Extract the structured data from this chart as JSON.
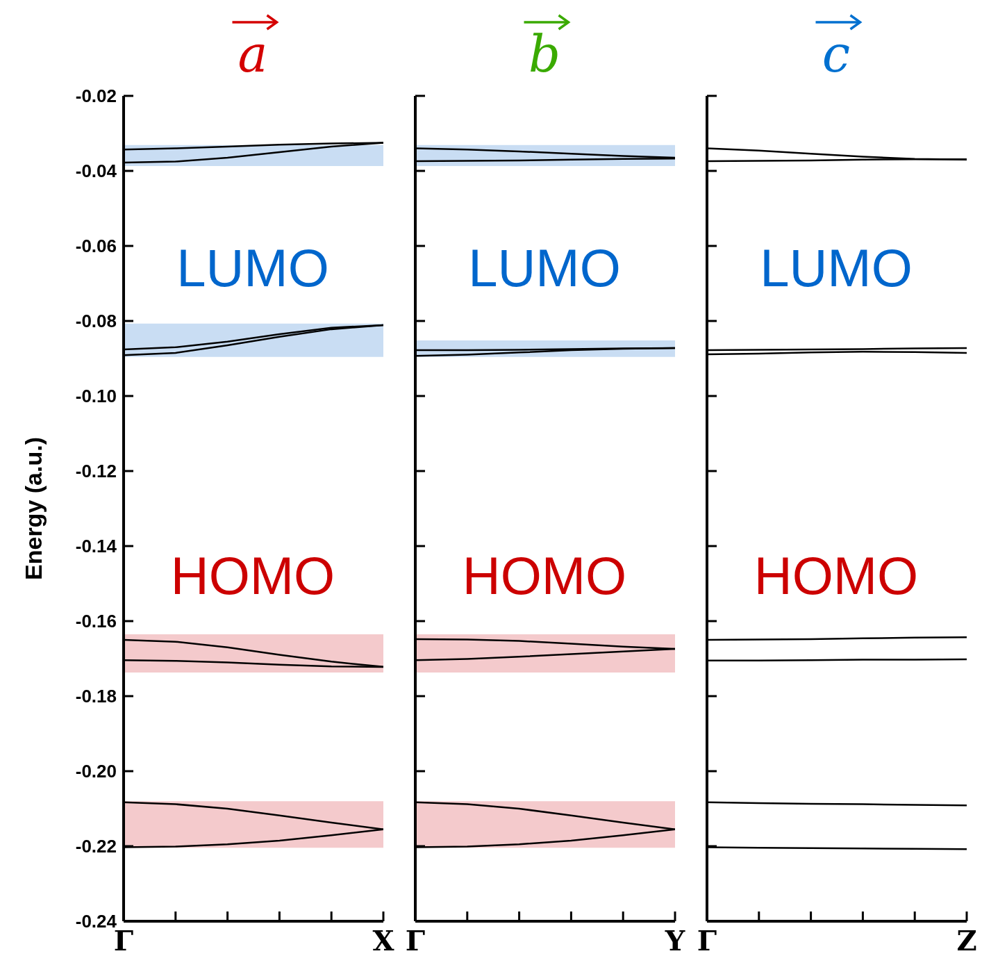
{
  "chart_data": [
    {
      "type": "line",
      "title": "a",
      "ylabel": "Energy (a.u.)",
      "annotations": [
        "LUMO",
        "HOMO"
      ],
      "categories": [
        "Γ",
        null,
        null,
        null,
        null,
        "X"
      ],
      "ylim": [
        -0.24,
        -0.02
      ],
      "yticks": [
        -0.24,
        -0.22,
        {
          "value": -0.2,
          "label": "-0.20"
        },
        -0.18,
        -0.16,
        -0.14,
        -0.12,
        {
          "value": -0.1,
          "label": "-0.10"
        },
        -0.08,
        -0.06,
        -0.04,
        -0.02
      ],
      "bands": [
        {
          "axis": "y",
          "from": -0.0387,
          "to": -0.0331,
          "color": "#c9ddf3"
        },
        {
          "axis": "y",
          "from": -0.0896,
          "to": -0.0807,
          "color": "#c9ddf3"
        },
        {
          "axis": "y",
          "from": -0.1737,
          "to": -0.1635,
          "color": "#f4cacc"
        },
        {
          "axis": "y",
          "from": -0.2204,
          "to": -0.208,
          "color": "#f4cacc"
        }
      ],
      "series": [
        {
          "color": "#000000",
          "values": [
            -0.0343,
            -0.034,
            -0.0335,
            -0.033,
            -0.0327,
            -0.0325
          ]
        },
        {
          "color": "#000000",
          "values": [
            -0.0378,
            -0.0375,
            -0.0365,
            -0.035,
            -0.0335,
            -0.0325
          ]
        },
        {
          "color": "#000000",
          "values": [
            -0.0876,
            -0.087,
            -0.0855,
            -0.0835,
            -0.0818,
            -0.0811
          ]
        },
        {
          "color": "#000000",
          "values": [
            -0.0891,
            -0.0885,
            -0.0865,
            -0.0842,
            -0.0822,
            -0.0811
          ]
        },
        {
          "color": "#000000",
          "values": [
            -0.165,
            -0.1655,
            -0.167,
            -0.169,
            -0.1708,
            -0.1722
          ]
        },
        {
          "color": "#000000",
          "values": [
            -0.1704,
            -0.1706,
            -0.171,
            -0.1716,
            -0.1721,
            -0.1722
          ]
        },
        {
          "color": "#000000",
          "values": [
            -0.2083,
            -0.2088,
            -0.21,
            -0.2118,
            -0.2137,
            -0.2155
          ]
        },
        {
          "color": "#000000",
          "values": [
            -0.2203,
            -0.2201,
            -0.2195,
            -0.2185,
            -0.2171,
            -0.2155
          ]
        }
      ]
    },
    {
      "type": "line",
      "title": "b",
      "annotations": [
        "LUMO",
        "HOMO"
      ],
      "tick_labels": "x",
      "categories": [
        "Γ",
        null,
        null,
        null,
        null,
        "Y"
      ],
      "ylim": [
        -0.24,
        -0.02
      ],
      "yticks": [
        -0.24,
        -0.22,
        -0.2,
        -0.18,
        -0.16,
        -0.14,
        -0.12,
        -0.1,
        -0.08,
        -0.06,
        -0.04,
        -0.02
      ],
      "bands": [
        {
          "axis": "y",
          "from": -0.0387,
          "to": -0.0331,
          "color": "#c9ddf3"
        },
        {
          "axis": "y",
          "from": -0.0896,
          "to": -0.0852,
          "color": "#c9ddf3"
        },
        {
          "axis": "y",
          "from": -0.1737,
          "to": -0.1635,
          "color": "#f4cacc"
        },
        {
          "axis": "y",
          "from": -0.2204,
          "to": -0.208,
          "color": "#f4cacc"
        }
      ],
      "series": [
        {
          "color": "#000000",
          "values": [
            -0.034,
            -0.0343,
            -0.0348,
            -0.0354,
            -0.036,
            -0.0365
          ]
        },
        {
          "color": "#000000",
          "values": [
            -0.0374,
            -0.0373,
            -0.0372,
            -0.037,
            -0.0368,
            -0.0367
          ]
        },
        {
          "color": "#000000",
          "values": [
            -0.0878,
            -0.0878,
            -0.0877,
            -0.0875,
            -0.0873,
            -0.0872
          ]
        },
        {
          "color": "#000000",
          "values": [
            -0.0893,
            -0.089,
            -0.0884,
            -0.0878,
            -0.0874,
            -0.0872
          ]
        },
        {
          "color": "#000000",
          "values": [
            -0.1648,
            -0.1649,
            -0.1653,
            -0.166,
            -0.1668,
            -0.1674
          ]
        },
        {
          "color": "#000000",
          "values": [
            -0.1704,
            -0.1701,
            -0.1695,
            -0.1688,
            -0.1681,
            -0.1674
          ]
        },
        {
          "color": "#000000",
          "values": [
            -0.2083,
            -0.2088,
            -0.21,
            -0.2118,
            -0.2137,
            -0.2155
          ]
        },
        {
          "color": "#000000",
          "values": [
            -0.2203,
            -0.2201,
            -0.2195,
            -0.2185,
            -0.2171,
            -0.2155
          ]
        }
      ]
    },
    {
      "type": "line",
      "title": "c",
      "annotations": [
        "LUMO",
        "HOMO"
      ],
      "tick_labels": "x",
      "categories": [
        "Γ",
        null,
        null,
        null,
        null,
        "Z"
      ],
      "ylim": [
        -0.24,
        -0.02
      ],
      "yticks": [
        -0.24,
        -0.22,
        -0.2,
        -0.18,
        -0.16,
        -0.14,
        -0.12,
        -0.1,
        -0.08,
        -0.06,
        -0.04,
        -0.02
      ],
      "series": [
        {
          "color": "#000000",
          "values": [
            -0.034,
            -0.0346,
            -0.0354,
            -0.0362,
            -0.0368,
            -0.037
          ]
        },
        {
          "color": "#000000",
          "values": [
            -0.0374,
            -0.0373,
            -0.0372,
            -0.037,
            -0.0369,
            -0.0369
          ]
        },
        {
          "color": "#000000",
          "values": [
            -0.0878,
            -0.0877,
            -0.0876,
            -0.0875,
            -0.0873,
            -0.0872
          ]
        },
        {
          "color": "#000000",
          "values": [
            -0.0889,
            -0.0887,
            -0.0884,
            -0.0882,
            -0.0883,
            -0.0885
          ]
        },
        {
          "color": "#000000",
          "values": [
            -0.165,
            -0.1649,
            -0.1648,
            -0.1646,
            -0.1644,
            -0.1643
          ]
        },
        {
          "color": "#000000",
          "values": [
            -0.1705,
            -0.1705,
            -0.1704,
            -0.1703,
            -0.1703,
            -0.1702
          ]
        },
        {
          "color": "#000000",
          "values": [
            -0.2083,
            -0.2085,
            -0.2087,
            -0.2088,
            -0.209,
            -0.2091
          ]
        },
        {
          "color": "#000000",
          "values": [
            -0.2203,
            -0.2204,
            -0.2205,
            -0.2206,
            -0.2207,
            -0.2208
          ]
        }
      ]
    }
  ]
}
